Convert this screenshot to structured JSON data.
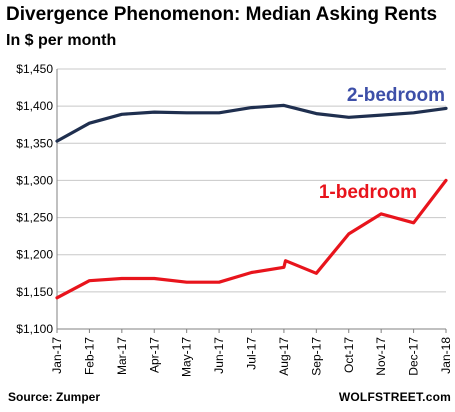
{
  "title": "Divergence Phenomenon: Median Asking Rents",
  "subtitle": "In $ per month",
  "source": "Source: Zumper",
  "brand": "WOLFSTREET.com",
  "chart_data": {
    "type": "line",
    "title": "Divergence Phenomenon: Median Asking Rents",
    "subtitle": "In $ per month",
    "ylim": [
      1100,
      1450
    ],
    "yticks": [
      1100,
      1150,
      1200,
      1250,
      1300,
      1350,
      1400,
      1450
    ],
    "ytick_labels": [
      "$1,100",
      "$1,150",
      "$1,200",
      "$1,250",
      "$1,300",
      "$1,350",
      "$1,400",
      "$1,450"
    ],
    "grid": true,
    "x_labels": [
      "Jan-17",
      "Feb-17",
      "Mar-17",
      "Apr-17",
      "May-17",
      "Jun-17",
      "Jul-17",
      "Aug-17",
      "Sep-17",
      "Oct-17",
      "Nov-17",
      "Dec-17",
      "Jan-18"
    ],
    "series": [
      {
        "name": "2-bedroom",
        "color": "#1f2f4f",
        "label_color": "#3d4fa8",
        "points": [
          [
            0,
            1353
          ],
          [
            1,
            1377
          ],
          [
            2,
            1389
          ],
          [
            3,
            1392
          ],
          [
            4,
            1391
          ],
          [
            5,
            1391
          ],
          [
            6,
            1398
          ],
          [
            7,
            1401
          ],
          [
            8,
            1390
          ],
          [
            9,
            1385
          ],
          [
            10,
            1388
          ],
          [
            11,
            1391
          ],
          [
            12,
            1397
          ]
        ]
      },
      {
        "name": "1-bedroom",
        "color": "#e8141c",
        "label_color": "#e8141c",
        "points": [
          [
            0,
            1142
          ],
          [
            1,
            1165
          ],
          [
            2,
            1168
          ],
          [
            3,
            1168
          ],
          [
            4,
            1163
          ],
          [
            5,
            1163
          ],
          [
            6,
            1176
          ],
          [
            7,
            1183
          ],
          [
            7.05,
            1192
          ],
          [
            8,
            1175
          ],
          [
            9,
            1228
          ],
          [
            10,
            1255
          ],
          [
            11,
            1243
          ],
          [
            12,
            1300
          ]
        ]
      }
    ]
  }
}
